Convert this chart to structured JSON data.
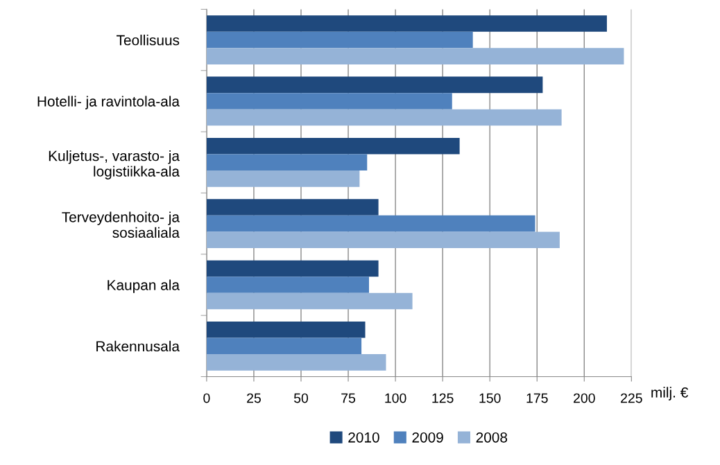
{
  "chart_data": {
    "type": "bar",
    "orientation": "horizontal",
    "xlabel": "milj. €",
    "categories": [
      "Teollisuus",
      "Hotelli- ja ravintola-ala",
      "Kuljetus-, varasto- ja\nlogistiikka-ala",
      "Terveydenhoito- ja\nsosiaaliala",
      "Kaupan ala",
      "Rakennusala"
    ],
    "series": [
      {
        "name": "2010",
        "color": "#1f497d",
        "values": [
          212,
          178,
          134,
          91,
          91,
          84
        ]
      },
      {
        "name": "2009",
        "color": "#4f81bd",
        "values": [
          141,
          130,
          85,
          174,
          86,
          82
        ]
      },
      {
        "name": "2008",
        "color": "#95b3d7",
        "values": [
          221,
          188,
          81,
          187,
          109,
          95
        ]
      }
    ],
    "xlim": [
      0,
      225
    ],
    "xticks": [
      0,
      25,
      50,
      75,
      100,
      125,
      150,
      175,
      200,
      225
    ],
    "grid": "x",
    "legend": "bottom"
  }
}
